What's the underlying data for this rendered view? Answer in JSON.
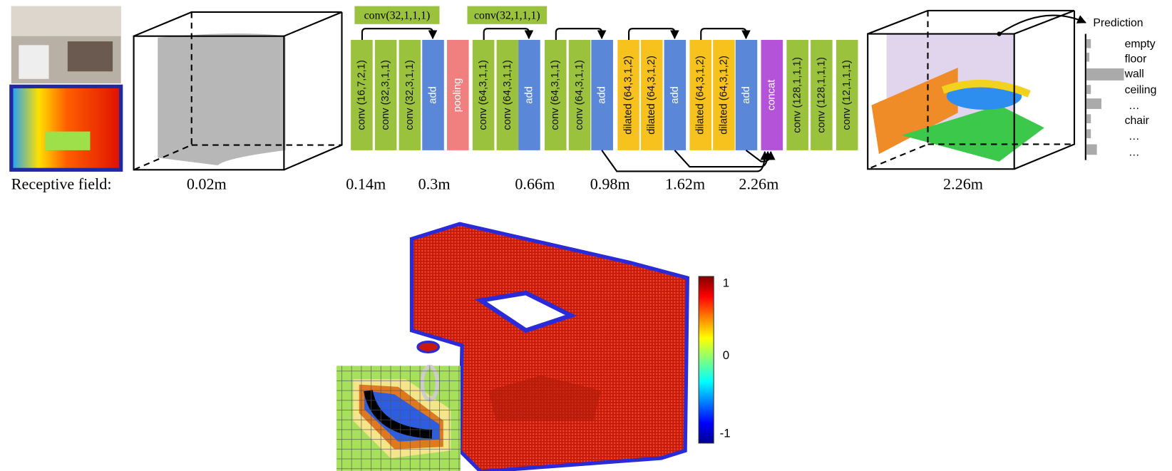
{
  "layers": [
    {
      "label": "conv (16,7,2,1)"
    },
    {
      "label": "conv (32,3,1,1)"
    },
    {
      "label": "conv (32,3,1,1)"
    },
    {
      "label": "add"
    },
    {
      "label": "pooling"
    },
    {
      "label": "conv (64,3,1,1)"
    },
    {
      "label": "conv (64,3,1,1)"
    },
    {
      "label": "add"
    },
    {
      "label": "conv (64,3,1,1)"
    },
    {
      "label": "conv (64,3,1,1)"
    },
    {
      "label": "add"
    },
    {
      "label": "dilated (64,3,1,2)"
    },
    {
      "label": "dilated (64,3,1,2)"
    },
    {
      "label": "add"
    },
    {
      "label": "dilated (64,3,1,2)"
    },
    {
      "label": "dilated (64,3,1,2)"
    },
    {
      "label": "add"
    },
    {
      "label": "concat"
    },
    {
      "label": "conv (128,1,1,1)"
    },
    {
      "label": "conv (128,1,1,1)"
    },
    {
      "label": "conv (12,1,1,1)"
    }
  ],
  "skip_labels": [
    "conv(32,1,1,1)",
    "conv(32,1,1,1)"
  ],
  "receptive_field": {
    "label": "Receptive field:",
    "values": [
      "0.02m",
      "0.14m",
      "0.3m",
      "0.66m",
      "0.98m",
      "1.62m",
      "2.26m",
      "2.26m"
    ]
  },
  "prediction": {
    "title": "Prediction",
    "classes": [
      "empty",
      "floor",
      "wall",
      "ceiling",
      "…",
      "chair",
      "…",
      "…"
    ]
  },
  "colorbar": {
    "labels": [
      "1",
      "0",
      "-1"
    ]
  }
}
